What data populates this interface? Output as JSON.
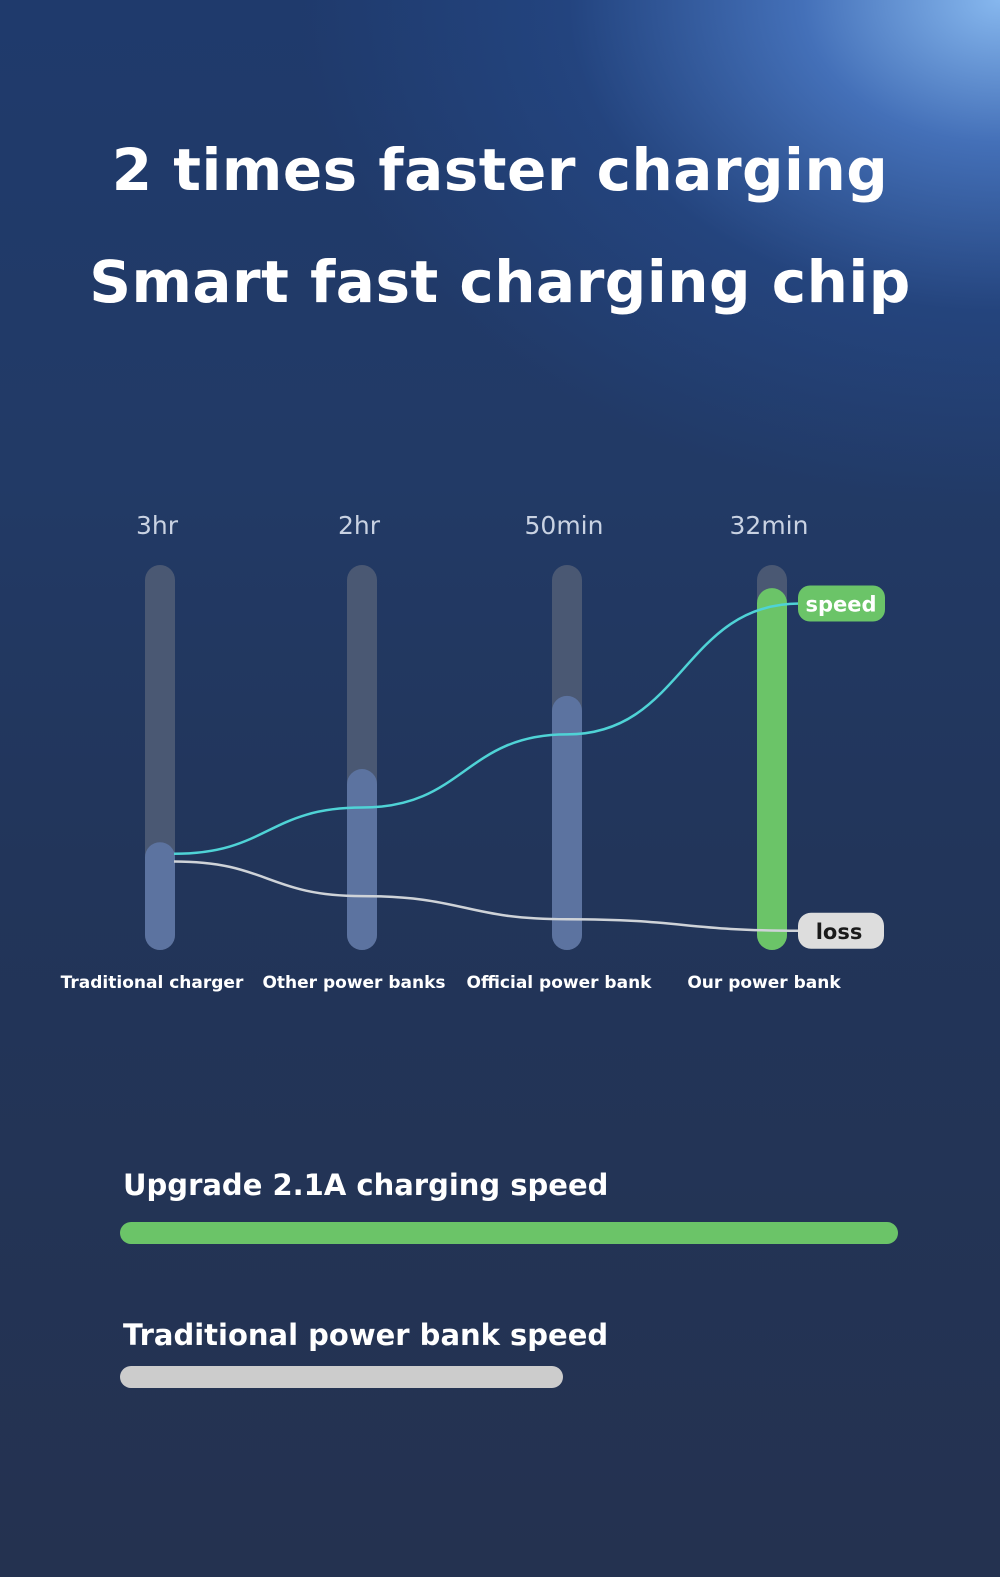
{
  "header": {
    "line1": "2 times faster charging",
    "line2": "Smart fast charging chip"
  },
  "chart_data": {
    "type": "bar",
    "categories": [
      "Traditional charger",
      "Other power banks",
      "Official power bank",
      "Our power bank"
    ],
    "time_labels": [
      "3hr",
      "2hr",
      "50min",
      "32min"
    ],
    "values": [
      0.28,
      0.47,
      0.66,
      0.94
    ],
    "ylim": [
      0,
      1
    ],
    "series_lines": [
      {
        "name": "speed",
        "values": [
          0.25,
          0.37,
          0.56,
          0.9
        ],
        "color": "#4fd3d6"
      },
      {
        "name": "loss",
        "values": [
          0.23,
          0.14,
          0.08,
          0.05
        ],
        "color": "#cfd3d8"
      }
    ],
    "colors": {
      "track": "#4a5873",
      "fill": "#5c73a0",
      "highlight": "#6bc468",
      "speed_tag": "#6bc468",
      "loss_tag": "#dddddd"
    }
  },
  "comparison": [
    {
      "label": "Upgrade 2.1A charging speed",
      "value": 1.0,
      "color": "#6bc468"
    },
    {
      "label": "Traditional power bank speed",
      "value": 0.57,
      "color": "#cccccc"
    }
  ]
}
